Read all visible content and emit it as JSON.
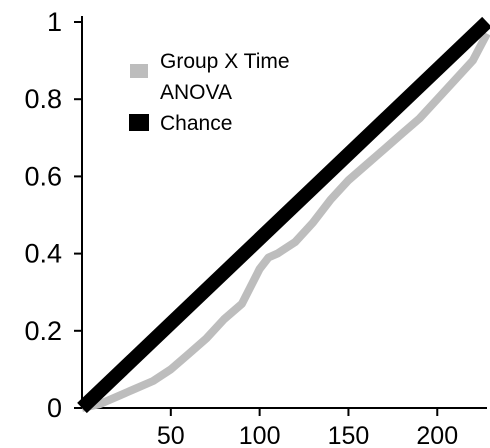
{
  "chart_data": {
    "type": "line",
    "title": "",
    "xlabel": "",
    "ylabel": "",
    "xlim": [
      0,
      228
    ],
    "ylim": [
      0,
      1
    ],
    "x_ticks": [
      50,
      100,
      150,
      200
    ],
    "x_tick_labels": [
      "50",
      "100",
      "150",
      "200"
    ],
    "y_ticks": [
      0,
      0.2,
      0.4,
      0.6,
      0.8,
      1
    ],
    "y_tick_labels": [
      "0",
      "0.2",
      "0.4",
      "0.6",
      "0.8",
      "1"
    ],
    "grid": false,
    "legend_position": "top-left",
    "legend": [
      {
        "label_lines": [
          "Group X Time",
          "ANOVA"
        ],
        "color": "#bdbdbd"
      },
      {
        "label_lines": [
          "Chance"
        ],
        "color": "#000000"
      }
    ],
    "series": [
      {
        "name": "Group X Time ANOVA",
        "color": "#bdbdbd",
        "x": [
          0,
          10,
          20,
          30,
          40,
          50,
          60,
          70,
          80,
          90,
          100,
          105,
          110,
          120,
          130,
          140,
          150,
          160,
          170,
          180,
          190,
          200,
          210,
          220,
          228
        ],
        "y": [
          0.0,
          0.01,
          0.03,
          0.05,
          0.07,
          0.1,
          0.14,
          0.18,
          0.23,
          0.27,
          0.36,
          0.39,
          0.4,
          0.43,
          0.48,
          0.54,
          0.59,
          0.63,
          0.67,
          0.71,
          0.75,
          0.8,
          0.85,
          0.9,
          0.97
        ]
      },
      {
        "name": "Chance",
        "color": "#000000",
        "x": [
          0,
          228
        ],
        "y": [
          0,
          1
        ]
      }
    ]
  }
}
